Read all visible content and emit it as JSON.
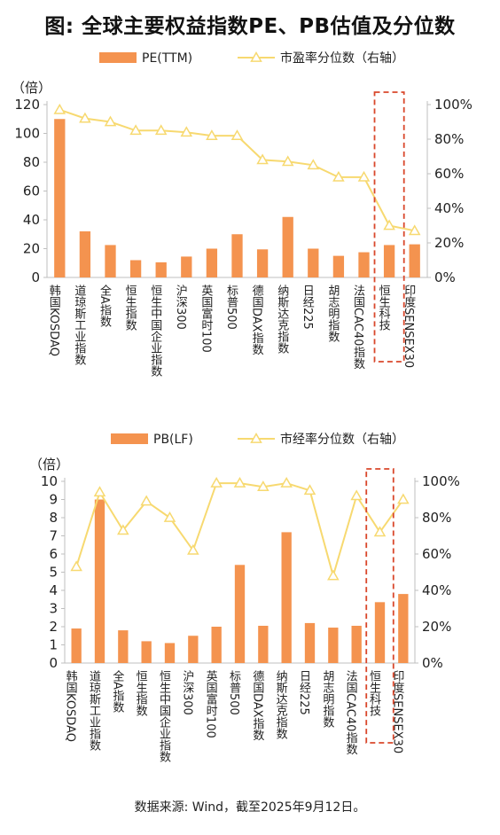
{
  "title": "图: 全球主要权益指数PE、PB估值及分位数",
  "source": "数据来源: Wind，截至2025年9月12日。",
  "colors": {
    "bar": "#f4934f",
    "line": "#f7d970",
    "highlight": "#d9472b"
  },
  "chart_data": [
    {
      "type": "bar",
      "categories": [
        "韩国KOSDAQ",
        "道琼斯工业指数",
        "全A指数",
        "恒生指数",
        "恒生中国企业指数",
        "沪深300",
        "英国富时100",
        "标普500",
        "德国DAX指数",
        "纳斯达克指数",
        "日经225",
        "胡志明指数",
        "法国CAC40指数",
        "恒生科技",
        "印度SENSEX30"
      ],
      "unit_label": "（倍）",
      "series": [
        {
          "name": "PE(TTM)",
          "type": "bar",
          "axis": "left",
          "values": [
            110,
            32,
            22.5,
            12,
            10.5,
            14.5,
            20,
            30,
            19.5,
            42,
            20,
            15,
            17.5,
            22.5,
            23
          ]
        },
        {
          "name": "市盈率分位数（右轴）",
          "type": "line",
          "axis": "right",
          "values": [
            97,
            92,
            90,
            85,
            85,
            84,
            82,
            82,
            68,
            67,
            65,
            58,
            58,
            30,
            27
          ]
        }
      ],
      "ylim": [
        0,
        120
      ],
      "yticks": [
        "0",
        "20",
        "40",
        "60",
        "80",
        "100",
        "120"
      ],
      "y2lim": [
        0,
        100
      ],
      "y2ticks": [
        "0%",
        "20%",
        "40%",
        "60%",
        "80%",
        "100%"
      ],
      "highlight_category": "恒生科技"
    },
    {
      "type": "bar",
      "categories": [
        "韩国KOSDAQ",
        "道琼斯工业指数",
        "全A指数",
        "恒生指数",
        "恒生中国企业指数",
        "沪深300",
        "英国富时100",
        "标普500",
        "德国DAX指数",
        "纳斯达克指数",
        "日经225",
        "胡志明指数",
        "法国CAC40指数",
        "恒生科技",
        "印度SENSEX30"
      ],
      "unit_label": "（倍）",
      "series": [
        {
          "name": "PB(LF)",
          "type": "bar",
          "axis": "left",
          "values": [
            1.9,
            9.0,
            1.8,
            1.2,
            1.1,
            1.5,
            2.0,
            5.4,
            2.05,
            7.2,
            2.2,
            1.95,
            2.05,
            3.35,
            3.8
          ]
        },
        {
          "name": "市经率分位数（右轴）",
          "type": "line",
          "axis": "right",
          "values": [
            53,
            94,
            73,
            89,
            80,
            62,
            99,
            99,
            97,
            99,
            95,
            48,
            92,
            72,
            90
          ]
        }
      ],
      "ylim": [
        0,
        10
      ],
      "yticks": [
        "0",
        "1",
        "2",
        "3",
        "4",
        "5",
        "6",
        "7",
        "8",
        "9",
        "10"
      ],
      "y2lim": [
        0,
        100
      ],
      "y2ticks": [
        "0%",
        "20%",
        "40%",
        "60%",
        "80%",
        "100%"
      ],
      "highlight_category": "恒生科技"
    }
  ]
}
